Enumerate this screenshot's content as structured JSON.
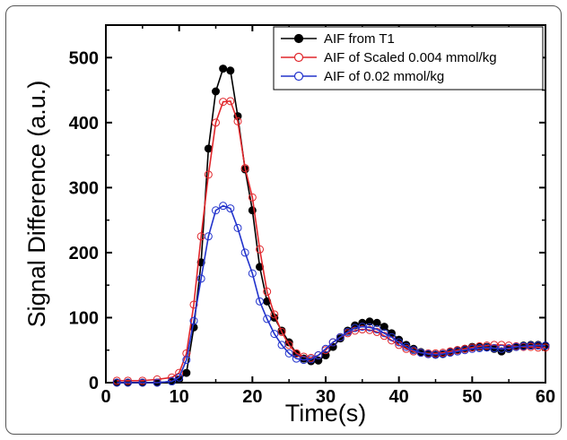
{
  "chart_data": {
    "type": "line",
    "title": "",
    "xlabel": "Time(s)",
    "ylabel": "Signal Difference (a.u.)",
    "xlim": [
      0,
      60
    ],
    "ylim": [
      0,
      550
    ],
    "xticks": [
      0,
      10,
      20,
      30,
      40,
      50,
      60
    ],
    "yticks": [
      0,
      100,
      200,
      300,
      400,
      500
    ],
    "grid": false,
    "legend_position": "top-right",
    "series": [
      {
        "name": "AIF from T1",
        "color": "#000000",
        "marker": "filled-circle",
        "x": [
          1.5,
          3,
          5,
          7,
          9,
          10,
          11,
          12,
          13,
          14,
          15,
          16,
          17,
          18,
          19,
          20,
          21,
          22,
          23,
          24,
          25,
          26,
          27,
          28,
          29,
          30,
          31,
          32,
          33,
          34,
          35,
          36,
          37,
          38,
          39,
          40,
          41,
          42,
          43,
          44,
          45,
          46,
          47,
          48,
          49,
          50,
          51,
          52,
          53,
          54,
          55,
          56,
          57,
          58,
          59,
          60
        ],
        "y": [
          0,
          0,
          0,
          0,
          2,
          5,
          15,
          85,
          185,
          360,
          448,
          483,
          480,
          410,
          328,
          265,
          178,
          125,
          100,
          80,
          62,
          45,
          37,
          33,
          34,
          42,
          55,
          68,
          80,
          88,
          92,
          94,
          92,
          86,
          76,
          66,
          58,
          52,
          47,
          44,
          43,
          44,
          47,
          50,
          52,
          55,
          55,
          55,
          52,
          48,
          52,
          55,
          57,
          58,
          58,
          57
        ]
      },
      {
        "name": "AIF of Scaled 0.004 mmol/kg",
        "color": "#e0262b",
        "marker": "open-circle",
        "x": [
          1.5,
          3,
          5,
          7,
          9,
          10,
          11,
          12,
          13,
          14,
          15,
          16,
          17,
          18,
          19,
          20,
          21,
          22,
          23,
          24,
          25,
          26,
          27,
          28,
          29,
          30,
          31,
          32,
          33,
          34,
          35,
          36,
          37,
          38,
          39,
          40,
          41,
          42,
          43,
          44,
          45,
          46,
          47,
          48,
          49,
          50,
          51,
          52,
          53,
          54,
          55,
          56,
          57,
          58,
          59,
          60
        ],
        "y": [
          3,
          3,
          3,
          5,
          8,
          15,
          45,
          120,
          225,
          320,
          400,
          432,
          433,
          402,
          330,
          285,
          205,
          140,
          105,
          78,
          58,
          45,
          40,
          38,
          42,
          50,
          62,
          70,
          76,
          80,
          82,
          81,
          78,
          72,
          65,
          58,
          52,
          48,
          46,
          45,
          45,
          46,
          48,
          50,
          52,
          54,
          56,
          57,
          58,
          58,
          57,
          56,
          55,
          55,
          54,
          54
        ]
      },
      {
        "name": "AIF of 0.02 mmol/kg",
        "color": "#2233cc",
        "marker": "open-circle",
        "x": [
          1.5,
          3,
          5,
          7,
          9,
          10,
          11,
          12,
          13,
          14,
          15,
          16,
          17,
          18,
          19,
          20,
          21,
          22,
          23,
          24,
          25,
          26,
          27,
          28,
          29,
          30,
          31,
          32,
          33,
          34,
          35,
          36,
          37,
          38,
          39,
          40,
          41,
          42,
          43,
          44,
          45,
          46,
          47,
          48,
          49,
          50,
          51,
          52,
          53,
          54,
          55,
          56,
          57,
          58,
          59,
          60
        ],
        "y": [
          0,
          0,
          0,
          0,
          2,
          8,
          35,
          95,
          160,
          225,
          265,
          272,
          268,
          238,
          200,
          168,
          125,
          98,
          75,
          58,
          45,
          37,
          35,
          36,
          42,
          52,
          62,
          70,
          78,
          84,
          86,
          85,
          82,
          76,
          70,
          62,
          55,
          50,
          46,
          44,
          43,
          44,
          46,
          48,
          50,
          52,
          53,
          54,
          53,
          52,
          53,
          55,
          56,
          57,
          57,
          57
        ]
      }
    ]
  }
}
